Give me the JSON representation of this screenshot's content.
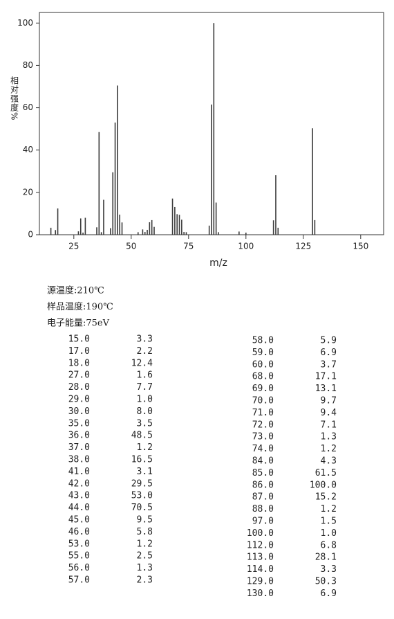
{
  "chart_data": {
    "type": "bar",
    "x_label": "m/z",
    "y_label": "相对强度%",
    "x": [
      15,
      17,
      18,
      27,
      28,
      29,
      30,
      35,
      36,
      37,
      38,
      41,
      42,
      43,
      44,
      45,
      46,
      53,
      55,
      56,
      57,
      58,
      59,
      60,
      68,
      69,
      70,
      71,
      72,
      73,
      74,
      84,
      85,
      86,
      87,
      88,
      97,
      100,
      112,
      113,
      114,
      129,
      130
    ],
    "values": [
      3.3,
      2.2,
      12.4,
      1.6,
      7.7,
      1.0,
      8.0,
      3.5,
      48.5,
      1.2,
      16.5,
      3.1,
      29.5,
      53.0,
      70.5,
      9.5,
      5.8,
      1.2,
      2.5,
      1.3,
      2.3,
      5.9,
      6.9,
      3.7,
      17.1,
      13.1,
      9.7,
      9.4,
      7.1,
      1.3,
      1.2,
      4.3,
      61.5,
      100.0,
      15.2,
      1.2,
      1.5,
      1.0,
      6.8,
      28.1,
      3.3,
      50.3,
      6.9
    ],
    "color": "#3a3a3a",
    "xlim": [
      10,
      160
    ],
    "xticks": [
      25,
      50,
      75,
      100,
      125,
      150
    ],
    "ylim": [
      0,
      105
    ],
    "yticks": [
      0,
      20,
      40,
      60,
      80,
      100
    ]
  },
  "conditions": [
    "源温度:210℃",
    "样品温度:190℃",
    "电子能量:75eV"
  ],
  "peak_table": [
    [
      [
        "15.0",
        "3.3"
      ],
      [
        "17.0",
        "2.2"
      ],
      [
        "18.0",
        "12.4"
      ],
      [
        "27.0",
        "1.6"
      ],
      [
        "28.0",
        "7.7"
      ],
      [
        "29.0",
        "1.0"
      ],
      [
        "30.0",
        "8.0"
      ],
      [
        "35.0",
        "3.5"
      ],
      [
        "36.0",
        "48.5"
      ],
      [
        "37.0",
        "1.2"
      ],
      [
        "38.0",
        "16.5"
      ],
      [
        "41.0",
        "3.1"
      ],
      [
        "42.0",
        "29.5"
      ],
      [
        "43.0",
        "53.0"
      ],
      [
        "44.0",
        "70.5"
      ],
      [
        "45.0",
        "9.5"
      ],
      [
        "46.0",
        "5.8"
      ],
      [
        "53.0",
        "1.2"
      ],
      [
        "55.0",
        "2.5"
      ],
      [
        "56.0",
        "1.3"
      ],
      [
        "57.0",
        "2.3"
      ]
    ],
    [
      [
        "58.0",
        "5.9"
      ],
      [
        "59.0",
        "6.9"
      ],
      [
        "60.0",
        "3.7"
      ],
      [
        "68.0",
        "17.1"
      ],
      [
        "69.0",
        "13.1"
      ],
      [
        "70.0",
        "9.7"
      ],
      [
        "71.0",
        "9.4"
      ],
      [
        "72.0",
        "7.1"
      ],
      [
        "73.0",
        "1.3"
      ],
      [
        "74.0",
        "1.2"
      ],
      [
        "84.0",
        "4.3"
      ],
      [
        "85.0",
        "61.5"
      ],
      [
        "86.0",
        "100.0"
      ],
      [
        "87.0",
        "15.2"
      ],
      [
        "88.0",
        "1.2"
      ],
      [
        "97.0",
        "1.5"
      ],
      [
        "100.0",
        "1.0"
      ],
      [
        "112.0",
        "6.8"
      ],
      [
        "113.0",
        "28.1"
      ],
      [
        "114.0",
        "3.3"
      ],
      [
        "129.0",
        "50.3"
      ],
      [
        "130.0",
        "6.9"
      ]
    ]
  ]
}
